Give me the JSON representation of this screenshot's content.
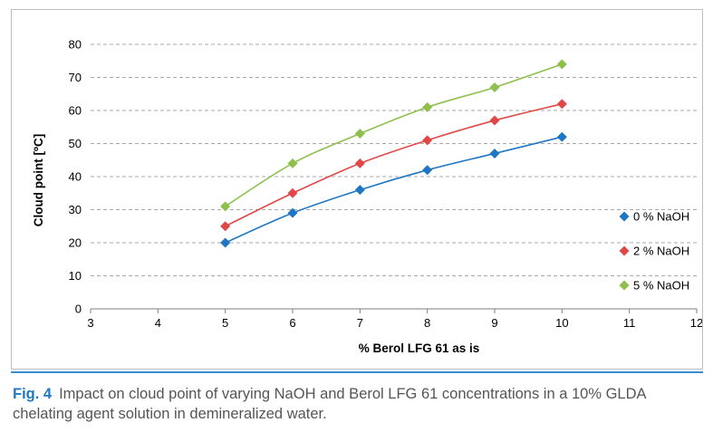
{
  "chart_data": {
    "type": "scatter",
    "xlabel": "% Berol LFG 61 as is",
    "ylabel": "Cloud point [ºC]",
    "xlim": [
      3,
      12
    ],
    "ylim": [
      0,
      80
    ],
    "xticks": [
      3,
      4,
      5,
      6,
      7,
      8,
      9,
      10,
      11,
      12
    ],
    "yticks": [
      0,
      10,
      20,
      30,
      40,
      50,
      60,
      70,
      80
    ],
    "grid": true,
    "legend_position": "right",
    "x": [
      5,
      6,
      7,
      8,
      9,
      10
    ],
    "series": [
      {
        "name": "0 % NaOH",
        "color": "#1f77c4",
        "values": [
          20,
          29,
          36,
          42,
          47,
          52
        ]
      },
      {
        "name": "2 % NaOH",
        "color": "#e04848",
        "values": [
          25,
          35,
          44,
          51,
          57,
          62
        ]
      },
      {
        "name": "5 % NaOH",
        "color": "#8fbf4d",
        "values": [
          31,
          44,
          53,
          61,
          67,
          74
        ]
      }
    ]
  },
  "caption": {
    "label": "Fig. 4",
    "text": "Impact on cloud point of varying NaOH and Berol LFG 61 concentrations in a 10% GLDA chelating agent solution in demineralized water."
  }
}
